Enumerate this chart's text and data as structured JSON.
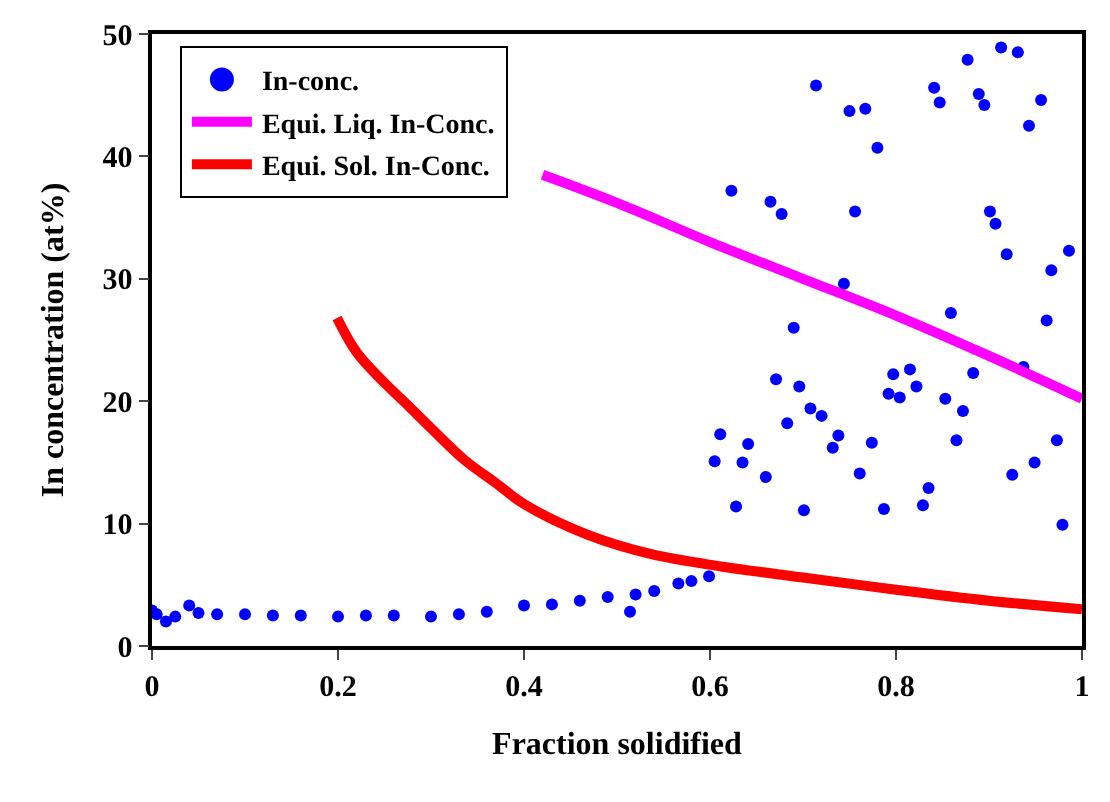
{
  "chart_data": {
    "type": "scatter",
    "xlabel": "Fraction solidified",
    "ylabel": "In concentration (at%)",
    "xlim": [
      0,
      1
    ],
    "ylim": [
      0,
      50
    ],
    "xticks": [
      0,
      0.2,
      0.4,
      0.6,
      0.8,
      {
        "value": 1,
        "label": "1"
      }
    ],
    "yticks": [
      0,
      10,
      20,
      30,
      40,
      50
    ],
    "legend": "top left",
    "marker": "circle",
    "series": [
      {
        "name": "In-conc.",
        "color": "#0000ff",
        "x": [
          0,
          0.005,
          0.015,
          0.025,
          0.04,
          0.05,
          0.07,
          0.1,
          0.13,
          0.16,
          0.2,
          0.23,
          0.26,
          0.3,
          0.33,
          0.36,
          0.4,
          0.43,
          0.46,
          0.49,
          0.514,
          0.52,
          0.54,
          0.566,
          0.58,
          0.599,
          0.714,
          0.75,
          0.767,
          0.78,
          0.623,
          0.665,
          0.677,
          0.756,
          0.877,
          0.913,
          0.931,
          0.841,
          0.847,
          0.889,
          0.895,
          0.956,
          0.943,
          0.901,
          0.907,
          0.919,
          0.986,
          0.967,
          0.744,
          0.859,
          0.962,
          0.69,
          0.671,
          0.696,
          0.797,
          0.815,
          0.822,
          0.792,
          0.804,
          0.883,
          0.937,
          0.853,
          0.872,
          0.708,
          0.72,
          0.683,
          0.611,
          0.641,
          0.738,
          0.732,
          0.774,
          0.865,
          0.973,
          0.605,
          0.635,
          0.66,
          0.761,
          0.925,
          0.949,
          0.835,
          0.829,
          0.628,
          0.701,
          0.787,
          0.979
        ],
        "values": [
          2.9,
          2.6,
          2.0,
          2.4,
          3.3,
          2.7,
          2.6,
          2.6,
          2.5,
          2.5,
          2.4,
          2.5,
          2.5,
          2.4,
          2.6,
          2.8,
          3.3,
          3.4,
          3.7,
          4.0,
          2.8,
          4.2,
          4.5,
          5.1,
          5.3,
          5.7,
          45.8,
          43.7,
          43.9,
          40.7,
          37.2,
          36.3,
          35.3,
          35.5,
          47.9,
          48.9,
          48.5,
          45.6,
          44.4,
          45.1,
          44.2,
          44.6,
          42.5,
          35.5,
          34.5,
          32.0,
          32.3,
          30.7,
          29.6,
          27.2,
          26.6,
          26.0,
          21.8,
          21.2,
          22.2,
          22.6,
          21.2,
          20.6,
          20.3,
          22.3,
          22.8,
          20.2,
          19.2,
          19.4,
          18.8,
          18.2,
          17.3,
          16.5,
          17.2,
          16.2,
          16.6,
          16.8,
          16.8,
          15.1,
          15.0,
          13.8,
          14.1,
          14.0,
          15.0,
          12.9,
          11.5,
          11.4,
          11.1,
          11.2,
          9.9
        ]
      },
      {
        "name": "Equi. Liq. In-Conc.",
        "color": "#ff00ff",
        "type": "line",
        "marker": "none",
        "x": [
          0.42,
          0.5,
          0.6,
          0.7,
          0.8,
          0.9,
          1.0
        ],
        "values": [
          38.5,
          36.2,
          33.0,
          30.0,
          27.0,
          23.7,
          20.2
        ]
      },
      {
        "name": "Equi. Sol. In-Conc.",
        "color": "#ff0000",
        "type": "line",
        "marker": "none",
        "x": [
          0.199,
          0.22,
          0.25,
          0.276,
          0.3,
          0.336,
          0.37,
          0.4,
          0.468,
          0.537,
          0.612,
          0.7,
          0.8,
          0.9,
          1.0
        ],
        "values": [
          26.8,
          24.0,
          21.5,
          19.6,
          17.8,
          15.2,
          13.3,
          11.6,
          9.1,
          7.5,
          6.5,
          5.6,
          4.6,
          3.7,
          3.0
        ]
      }
    ]
  }
}
